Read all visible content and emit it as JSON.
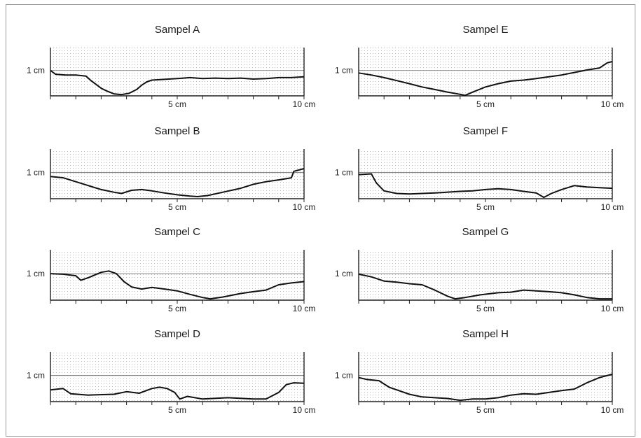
{
  "chart_data": [
    {
      "type": "line",
      "title": "Sampel A",
      "ylabel": "1 cm",
      "ref_y": 1,
      "x_tick_labels": [
        "5 cm",
        "10 cm"
      ],
      "xlim": [
        0,
        10
      ],
      "ylim": [
        0,
        1.9
      ],
      "series": [
        {
          "values": [
            [
              0,
              1
            ],
            [
              0.2,
              0.85
            ],
            [
              0.6,
              0.82
            ],
            [
              1.0,
              0.82
            ],
            [
              1.4,
              0.78
            ],
            [
              1.6,
              0.6
            ],
            [
              1.8,
              0.45
            ],
            [
              2.0,
              0.3
            ],
            [
              2.2,
              0.2
            ],
            [
              2.5,
              0.08
            ],
            [
              2.8,
              0.05
            ],
            [
              3.1,
              0.1
            ],
            [
              3.4,
              0.25
            ],
            [
              3.6,
              0.42
            ],
            [
              3.8,
              0.55
            ],
            [
              4.0,
              0.62
            ],
            [
              4.5,
              0.65
            ],
            [
              5.0,
              0.68
            ],
            [
              5.5,
              0.72
            ],
            [
              6.0,
              0.68
            ],
            [
              6.5,
              0.7
            ],
            [
              7.0,
              0.68
            ],
            [
              7.5,
              0.7
            ],
            [
              8.0,
              0.66
            ],
            [
              8.5,
              0.68
            ],
            [
              9.0,
              0.72
            ],
            [
              9.5,
              0.72
            ],
            [
              10,
              0.75
            ]
          ]
        }
      ]
    },
    {
      "type": "line",
      "title": "Sampel B",
      "ylabel": "1 cm",
      "ref_y": 1,
      "x_tick_labels": [
        "5 cm",
        "10 cm"
      ],
      "xlim": [
        0,
        10
      ],
      "ylim": [
        0,
        1.9
      ],
      "series": [
        {
          "values": [
            [
              0,
              0.85
            ],
            [
              0.5,
              0.8
            ],
            [
              1.0,
              0.65
            ],
            [
              1.5,
              0.5
            ],
            [
              2.0,
              0.35
            ],
            [
              2.5,
              0.25
            ],
            [
              2.8,
              0.2
            ],
            [
              3.2,
              0.32
            ],
            [
              3.6,
              0.35
            ],
            [
              4.0,
              0.3
            ],
            [
              4.5,
              0.22
            ],
            [
              5.0,
              0.15
            ],
            [
              5.5,
              0.1
            ],
            [
              5.8,
              0.08
            ],
            [
              6.2,
              0.12
            ],
            [
              6.8,
              0.25
            ],
            [
              7.5,
              0.4
            ],
            [
              8.0,
              0.55
            ],
            [
              8.5,
              0.65
            ],
            [
              9.0,
              0.72
            ],
            [
              9.5,
              0.8
            ],
            [
              9.6,
              1.05
            ],
            [
              10,
              1.15
            ]
          ]
        }
      ]
    },
    {
      "type": "line",
      "title": "Sampel C",
      "ylabel": "1 cm",
      "ref_y": 1,
      "x_tick_labels": [
        "5 cm",
        "10 cm"
      ],
      "xlim": [
        0,
        10
      ],
      "ylim": [
        0,
        1.9
      ],
      "series": [
        {
          "values": [
            [
              0,
              1.0
            ],
            [
              0.5,
              0.98
            ],
            [
              1.0,
              0.92
            ],
            [
              1.2,
              0.75
            ],
            [
              1.5,
              0.85
            ],
            [
              2.0,
              1.05
            ],
            [
              2.3,
              1.1
            ],
            [
              2.6,
              1.0
            ],
            [
              2.9,
              0.7
            ],
            [
              3.2,
              0.5
            ],
            [
              3.6,
              0.42
            ],
            [
              4.0,
              0.48
            ],
            [
              4.5,
              0.42
            ],
            [
              5.0,
              0.35
            ],
            [
              5.5,
              0.22
            ],
            [
              6.0,
              0.1
            ],
            [
              6.3,
              0.05
            ],
            [
              6.8,
              0.12
            ],
            [
              7.5,
              0.25
            ],
            [
              8.0,
              0.32
            ],
            [
              8.5,
              0.38
            ],
            [
              9.0,
              0.58
            ],
            [
              9.5,
              0.65
            ],
            [
              10,
              0.7
            ]
          ]
        }
      ]
    },
    {
      "type": "line",
      "title": "Sampel D",
      "ylabel": "1 cm",
      "ref_y": 1,
      "x_tick_labels": [
        "5 cm",
        "10 cm"
      ],
      "xlim": [
        0,
        10
      ],
      "ylim": [
        0,
        1.9
      ],
      "series": [
        {
          "values": [
            [
              0,
              0.45
            ],
            [
              0.5,
              0.5
            ],
            [
              0.8,
              0.3
            ],
            [
              1.5,
              0.25
            ],
            [
              2.5,
              0.28
            ],
            [
              3.0,
              0.38
            ],
            [
              3.5,
              0.32
            ],
            [
              4.0,
              0.5
            ],
            [
              4.3,
              0.55
            ],
            [
              4.6,
              0.5
            ],
            [
              4.9,
              0.35
            ],
            [
              5.1,
              0.1
            ],
            [
              5.4,
              0.2
            ],
            [
              6.0,
              0.1
            ],
            [
              7.0,
              0.15
            ],
            [
              8.0,
              0.1
            ],
            [
              8.5,
              0.1
            ],
            [
              9.0,
              0.35
            ],
            [
              9.3,
              0.65
            ],
            [
              9.6,
              0.72
            ],
            [
              10,
              0.7
            ]
          ]
        }
      ]
    },
    {
      "type": "line",
      "title": "Sampel E",
      "ylabel": "1 cm",
      "ref_y": 1,
      "x_tick_labels": [
        "5 cm",
        "10 cm"
      ],
      "xlim": [
        0,
        10
      ],
      "ylim": [
        0,
        1.9
      ],
      "series": [
        {
          "values": [
            [
              0,
              0.9
            ],
            [
              0.5,
              0.82
            ],
            [
              1.0,
              0.72
            ],
            [
              1.5,
              0.6
            ],
            [
              2.0,
              0.48
            ],
            [
              2.5,
              0.35
            ],
            [
              3.0,
              0.25
            ],
            [
              3.5,
              0.15
            ],
            [
              4.0,
              0.06
            ],
            [
              4.2,
              0.02
            ],
            [
              4.5,
              0.15
            ],
            [
              5.0,
              0.35
            ],
            [
              5.5,
              0.48
            ],
            [
              6.0,
              0.58
            ],
            [
              6.5,
              0.62
            ],
            [
              7.0,
              0.68
            ],
            [
              7.5,
              0.75
            ],
            [
              8.0,
              0.82
            ],
            [
              8.5,
              0.92
            ],
            [
              9.0,
              1.02
            ],
            [
              9.5,
              1.1
            ],
            [
              9.8,
              1.3
            ],
            [
              10,
              1.35
            ]
          ]
        }
      ]
    },
    {
      "type": "line",
      "title": "Sampel F",
      "ylabel": "1 cm",
      "ref_y": 1,
      "x_tick_labels": [
        "5 cm",
        "10 cm"
      ],
      "xlim": [
        0,
        10
      ],
      "ylim": [
        0,
        1.9
      ],
      "series": [
        {
          "values": [
            [
              0,
              0.92
            ],
            [
              0.5,
              0.95
            ],
            [
              0.7,
              0.6
            ],
            [
              1.0,
              0.3
            ],
            [
              1.5,
              0.2
            ],
            [
              2.0,
              0.18
            ],
            [
              3.0,
              0.22
            ],
            [
              4.0,
              0.28
            ],
            [
              4.5,
              0.3
            ],
            [
              5.0,
              0.35
            ],
            [
              5.5,
              0.38
            ],
            [
              6.0,
              0.35
            ],
            [
              6.5,
              0.28
            ],
            [
              7.0,
              0.22
            ],
            [
              7.3,
              0.05
            ],
            [
              7.6,
              0.2
            ],
            [
              8.0,
              0.35
            ],
            [
              8.5,
              0.5
            ],
            [
              9.0,
              0.45
            ],
            [
              9.5,
              0.42
            ],
            [
              10,
              0.4
            ]
          ]
        }
      ]
    },
    {
      "type": "line",
      "title": "Sampel G",
      "ylabel": "1 cm",
      "ref_y": 1,
      "x_tick_labels": [
        "5 cm",
        "10 cm"
      ],
      "xlim": [
        0,
        10
      ],
      "ylim": [
        0,
        1.9
      ],
      "series": [
        {
          "values": [
            [
              0,
              0.98
            ],
            [
              0.5,
              0.88
            ],
            [
              1.0,
              0.72
            ],
            [
              1.5,
              0.68
            ],
            [
              2.0,
              0.62
            ],
            [
              2.5,
              0.58
            ],
            [
              3.0,
              0.38
            ],
            [
              3.5,
              0.15
            ],
            [
              3.8,
              0.05
            ],
            [
              4.2,
              0.1
            ],
            [
              4.8,
              0.2
            ],
            [
              5.5,
              0.28
            ],
            [
              6.0,
              0.3
            ],
            [
              6.5,
              0.38
            ],
            [
              7.0,
              0.35
            ],
            [
              7.5,
              0.32
            ],
            [
              8.0,
              0.28
            ],
            [
              8.5,
              0.2
            ],
            [
              9.0,
              0.1
            ],
            [
              9.5,
              0.05
            ],
            [
              10,
              0.05
            ]
          ]
        }
      ]
    },
    {
      "type": "line",
      "title": "Sampel H",
      "ylabel": "1 cm",
      "ref_y": 1,
      "x_tick_labels": [
        "5 cm",
        "10 cm"
      ],
      "xlim": [
        0,
        10
      ],
      "ylim": [
        0,
        1.9
      ],
      "series": [
        {
          "values": [
            [
              0,
              0.92
            ],
            [
              0.3,
              0.85
            ],
            [
              0.8,
              0.8
            ],
            [
              1.2,
              0.55
            ],
            [
              1.5,
              0.45
            ],
            [
              2.0,
              0.28
            ],
            [
              2.5,
              0.18
            ],
            [
              3.0,
              0.15
            ],
            [
              3.5,
              0.12
            ],
            [
              4.0,
              0.05
            ],
            [
              4.5,
              0.1
            ],
            [
              5.0,
              0.1
            ],
            [
              5.5,
              0.15
            ],
            [
              6.0,
              0.25
            ],
            [
              6.5,
              0.3
            ],
            [
              7.0,
              0.28
            ],
            [
              7.5,
              0.35
            ],
            [
              8.0,
              0.42
            ],
            [
              8.5,
              0.48
            ],
            [
              9.0,
              0.72
            ],
            [
              9.5,
              0.92
            ],
            [
              10,
              1.05
            ]
          ]
        }
      ]
    }
  ]
}
